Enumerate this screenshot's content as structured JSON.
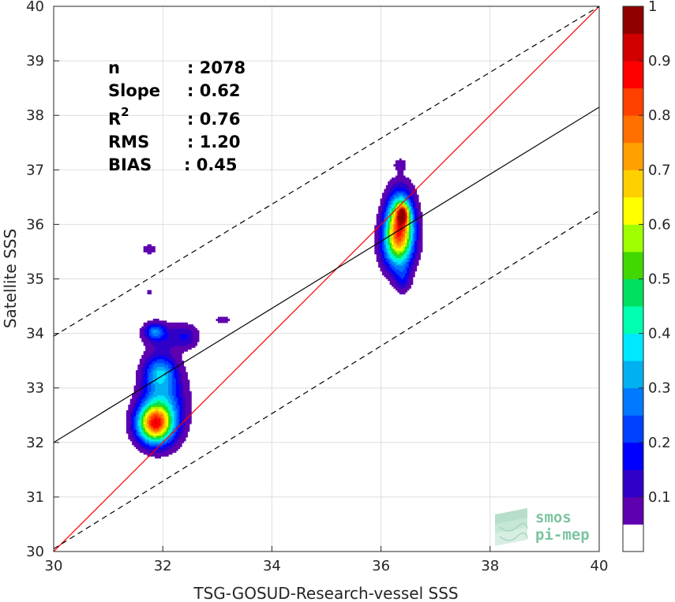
{
  "chart_data": {
    "type": "scatter",
    "subtype": "density-contour",
    "xlabel": "TSG-GOSUD-Research-vessel SSS",
    "ylabel": "Satellite SSS",
    "xlim": [
      30,
      40
    ],
    "ylim": [
      30,
      40
    ],
    "xticks": [
      "30",
      "32",
      "34",
      "36",
      "38",
      "40"
    ],
    "yticks": [
      "30",
      "31",
      "32",
      "33",
      "34",
      "35",
      "36",
      "37",
      "38",
      "39",
      "40"
    ],
    "grid": true,
    "lines": [
      {
        "id": "identity",
        "color": "#ff0000",
        "style": "solid",
        "x": [
          30,
          40
        ],
        "y": [
          30,
          40
        ]
      },
      {
        "id": "regression",
        "color": "#000000",
        "style": "solid",
        "x": [
          30,
          40
        ],
        "y": [
          32.0,
          38.15
        ]
      },
      {
        "id": "upper-bound",
        "color": "#000000",
        "style": "dashed",
        "x": [
          30,
          40
        ],
        "y": [
          33.95,
          40.0
        ]
      },
      {
        "id": "lower-bound",
        "color": "#000000",
        "style": "dashed",
        "x": [
          30,
          40
        ],
        "y": [
          30.05,
          36.25
        ]
      }
    ],
    "density_blobs": [
      {
        "cx": 31.85,
        "cy": 32.35,
        "sx": 0.22,
        "sy": 0.24,
        "peak": 0.72
      },
      {
        "cx": 32.0,
        "cy": 32.7,
        "sx": 0.28,
        "sy": 0.45,
        "peak": 0.28
      },
      {
        "cx": 31.95,
        "cy": 33.3,
        "sx": 0.2,
        "sy": 0.22,
        "peak": 0.25
      },
      {
        "cx": 32.05,
        "cy": 33.95,
        "sx": 0.3,
        "sy": 0.18,
        "peak": 0.12
      },
      {
        "cx": 31.85,
        "cy": 34.05,
        "sx": 0.12,
        "sy": 0.1,
        "peak": 0.22
      },
      {
        "cx": 32.45,
        "cy": 33.95,
        "sx": 0.15,
        "sy": 0.15,
        "peak": 0.1
      },
      {
        "cx": 33.1,
        "cy": 34.25,
        "sx": 0.1,
        "sy": 0.06,
        "peak": 0.09
      },
      {
        "cx": 31.75,
        "cy": 35.55,
        "sx": 0.1,
        "sy": 0.07,
        "peak": 0.09
      },
      {
        "cx": 31.75,
        "cy": 34.75,
        "sx": 0.05,
        "sy": 0.04,
        "peak": 0.08
      },
      {
        "cx": 36.35,
        "cy": 36.05,
        "sx": 0.17,
        "sy": 0.38,
        "peak": 0.62
      },
      {
        "cx": 36.4,
        "cy": 36.2,
        "sx": 0.07,
        "sy": 0.12,
        "peak": 0.5
      },
      {
        "cx": 36.3,
        "cy": 35.65,
        "sx": 0.2,
        "sy": 0.35,
        "peak": 0.4
      },
      {
        "cx": 36.4,
        "cy": 35.0,
        "sx": 0.1,
        "sy": 0.18,
        "peak": 0.12
      },
      {
        "cx": 36.35,
        "cy": 37.1,
        "sx": 0.08,
        "sy": 0.08,
        "peak": 0.09
      }
    ],
    "colorbar": {
      "range": [
        0,
        1
      ],
      "ticks": [
        "0.1",
        "0.2",
        "0.3",
        "0.4",
        "0.5",
        "0.6",
        "0.7",
        "0.8",
        "0.9",
        "1"
      ],
      "colors": [
        "#ffffff",
        "#5f00b0",
        "#3000c8",
        "#0000ff",
        "#0040ff",
        "#0078ff",
        "#00b0f0",
        "#00e8ff",
        "#00ffb0",
        "#00e060",
        "#40d800",
        "#a0ff00",
        "#ffff00",
        "#ffd000",
        "#ffa000",
        "#ff7000",
        "#ff4000",
        "#ff0000",
        "#d00000",
        "#900000"
      ]
    }
  },
  "stats": {
    "n_label": "n",
    "n_value": ": 2078",
    "slope_label": "Slope",
    "slope_value": ": 0.62",
    "r2_label": "R",
    "r2_sup": "2",
    "r2_value": ": 0.76",
    "rms_label": "RMS",
    "rms_value": ": 1.20",
    "bias_label": "BIAS",
    "bias_value": ": 0.45"
  },
  "watermark": {
    "line1": "smos",
    "line2": "pi-mep"
  }
}
